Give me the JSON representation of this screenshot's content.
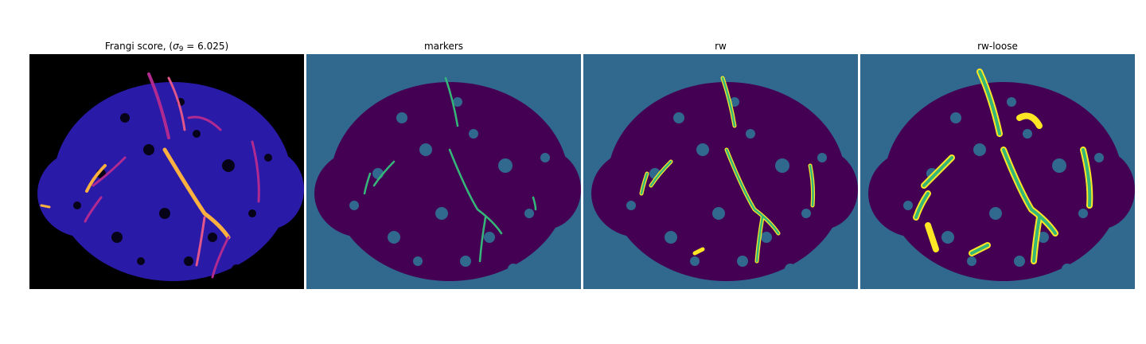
{
  "panels": [
    {
      "title_prefix": "Frangi score, (",
      "title_symbol": "σ",
      "title_subscript": "9",
      "title_suffix": " = 6.025)",
      "colors": {
        "background": "#000000",
        "texture": "#2a1aa8",
        "vessel_mid": "#b12a90",
        "vessel_hot": "#fcb040"
      }
    },
    {
      "title": "markers",
      "colors": {
        "background": "#31688e",
        "texture": "#440154",
        "vessel": "#35b779"
      }
    },
    {
      "title": "rw",
      "colors": {
        "background": "#31688e",
        "texture": "#440154",
        "vessel": "#35b779",
        "edge": "#fde725"
      }
    },
    {
      "title": "rw-loose",
      "colors": {
        "background": "#31688e",
        "texture": "#440154",
        "vessel": "#35b779",
        "edge": "#fde725"
      }
    }
  ]
}
